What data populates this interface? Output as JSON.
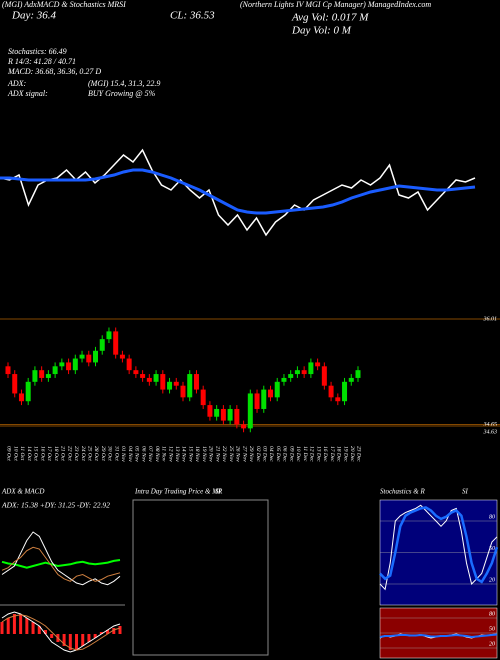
{
  "header": {
    "left_top": "(MGI) AdxMACD & Stochastics MRSI",
    "day": "Day: 36.4",
    "cl": "CL: 36.53",
    "title": "(Northern Lights IV MGI Cp Manager) ManagedIndex.com",
    "avg_vol": "Avg Vol: 0.017 M",
    "day_vol": "Day Vol: 0  M",
    "stoch": "Stochastics: 66.49",
    "r": "R 14/3: 41.28 / 40.71",
    "macd": "MACD: 36.68, 36.36, 0.27 D",
    "adx": "ADX:",
    "adx_vals": "(MGI) 15.4, 31.3, 22.9",
    "adx_signal": "ADX  signal:",
    "adx_buy": "BUY Growing @ 5%"
  },
  "chart_data": [
    {
      "type": "line",
      "categories": [
        null,
        null,
        null,
        null,
        null,
        null,
        null,
        null,
        null,
        null,
        null,
        null,
        null,
        null,
        null,
        null,
        null,
        null,
        null,
        null,
        null,
        null,
        null,
        null,
        null,
        null,
        null,
        null,
        null,
        null,
        null,
        null,
        null,
        null,
        null,
        null,
        null,
        null,
        null,
        null,
        null,
        null,
        null,
        null,
        null,
        null,
        null,
        null,
        null,
        null,
        null
      ],
      "ylim": [
        0,
        100
      ],
      "series": [
        {
          "color": "#ffffff",
          "width": 1.5,
          "values": [
            62,
            60,
            65,
            35,
            55,
            60,
            62,
            70,
            60,
            68,
            57,
            65,
            75,
            85,
            78,
            90,
            70,
            55,
            50,
            60,
            50,
            42,
            50,
            25,
            15,
            25,
            10,
            22,
            5,
            18,
            25,
            35,
            30,
            40,
            45,
            50,
            55,
            52,
            60,
            55,
            62,
            75,
            45,
            42,
            48,
            30,
            40,
            50,
            60,
            58,
            62
          ]
        },
        {
          "color": "#1a5cff",
          "width": 3,
          "values": [
            62,
            62,
            61,
            60,
            60,
            60,
            60,
            60,
            60,
            60,
            61,
            63,
            65,
            68,
            70,
            70,
            68,
            65,
            62,
            58,
            54,
            50,
            45,
            40,
            35,
            30,
            28,
            27,
            27,
            28,
            29,
            30,
            31,
            32,
            33,
            35,
            38,
            42,
            45,
            48,
            50,
            52,
            54,
            53,
            52,
            51,
            50,
            50,
            51,
            52,
            53
          ]
        }
      ]
    },
    {
      "type": "candlestick",
      "up_color": "#00e000",
      "down_color": "#ff0000",
      "level_color": "#b06000",
      "ylim": [
        34.45,
        36.1
      ],
      "yticks": [
        {
          "value": 36.01,
          "label": "36.01"
        },
        {
          "value": 34.65,
          "label": "34.65"
        },
        {
          "value": 34.63,
          "label": "34.63"
        }
      ],
      "categories": [
        "09 Oct",
        "10 Oct",
        "11 Oct",
        "14 Oct",
        "15 Oct",
        "16 Oct",
        "17 Oct",
        "18 Oct",
        "21 Oct",
        "22 Oct",
        "23 Oct",
        "24 Oct",
        "25 Oct",
        "28 Oct",
        "29 Oct",
        "30 Oct",
        "31 Oct",
        "01 Nov",
        "04 Nov",
        "05 Nov",
        "06 Nov",
        "07 Nov",
        "08 Nov",
        "11 Nov",
        "12 Nov",
        "13 Nov",
        "14 Nov",
        "15 Nov",
        "18 Nov",
        "19 Nov",
        "20 Nov",
        "21 Nov",
        "22 Nov",
        "25 Nov",
        "26 Nov",
        "27 Nov",
        "29 Nov",
        "02 Dec",
        "03 Dec",
        "04 Dec",
        "05 Dec",
        "06 Dec",
        "09 Dec",
        "10 Dec",
        "11 Dec",
        "12 Dec",
        "13 Dec",
        "16 Dec",
        "17 Dec",
        "18 Dec",
        "19 Dec",
        "20 Dec",
        "23 Dec"
      ],
      "open": [
        35.4,
        35.3,
        35.05,
        34.95,
        35.2,
        35.35,
        35.25,
        35.3,
        35.4,
        35.45,
        35.35,
        35.5,
        35.55,
        35.45,
        35.6,
        35.75,
        35.85,
        35.55,
        35.5,
        35.35,
        35.3,
        35.25,
        35.2,
        35.3,
        35.1,
        35.2,
        35.15,
        35.0,
        35.3,
        35.1,
        34.9,
        34.75,
        34.85,
        34.7,
        34.85,
        34.65,
        34.6,
        35.05,
        34.85,
        35.1,
        35.0,
        35.2,
        35.25,
        35.3,
        35.35,
        35.3,
        35.45,
        35.4,
        35.15,
        35.0,
        34.95,
        35.2,
        35.25
      ],
      "high": [
        35.45,
        35.35,
        35.1,
        35.25,
        35.4,
        35.4,
        35.35,
        35.45,
        35.5,
        35.5,
        35.55,
        35.6,
        35.6,
        35.65,
        35.8,
        35.9,
        35.9,
        35.6,
        35.55,
        35.4,
        35.35,
        35.3,
        35.35,
        35.35,
        35.25,
        35.25,
        35.2,
        35.35,
        35.35,
        35.15,
        34.95,
        34.9,
        34.9,
        34.9,
        34.9,
        34.7,
        35.1,
        35.1,
        35.15,
        35.15,
        35.25,
        35.3,
        35.35,
        35.4,
        35.4,
        35.5,
        35.5,
        35.45,
        35.2,
        35.05,
        35.25,
        35.3,
        35.4
      ],
      "low": [
        35.25,
        35.0,
        34.9,
        34.9,
        35.15,
        35.2,
        35.2,
        35.25,
        35.35,
        35.3,
        35.3,
        35.45,
        35.4,
        35.4,
        35.55,
        35.7,
        35.5,
        35.45,
        35.3,
        35.25,
        35.2,
        35.15,
        35.15,
        35.05,
        35.05,
        35.1,
        34.95,
        34.95,
        35.05,
        34.85,
        34.7,
        34.7,
        34.65,
        34.65,
        34.6,
        34.55,
        34.55,
        34.8,
        34.8,
        34.95,
        34.95,
        35.15,
        35.2,
        35.25,
        35.25,
        35.25,
        35.35,
        35.1,
        34.95,
        34.9,
        34.9,
        35.15,
        35.2
      ],
      "close": [
        35.3,
        35.05,
        34.95,
        35.2,
        35.35,
        35.25,
        35.3,
        35.4,
        35.45,
        35.35,
        35.5,
        35.55,
        35.45,
        35.6,
        35.75,
        35.85,
        35.55,
        35.5,
        35.35,
        35.3,
        35.25,
        35.2,
        35.3,
        35.1,
        35.2,
        35.15,
        35.0,
        35.3,
        35.1,
        34.9,
        34.75,
        34.85,
        34.7,
        34.85,
        34.65,
        34.6,
        35.05,
        34.85,
        35.1,
        35.0,
        35.2,
        35.25,
        35.3,
        35.35,
        35.3,
        35.45,
        35.4,
        35.15,
        35.0,
        34.95,
        35.2,
        35.25,
        35.35
      ]
    },
    {
      "type": "line",
      "title": "ADX  & MACD",
      "subtitle": "ADX: 15.38  +DY: 31.25  -DY: 22.92",
      "ylim": [
        0,
        100
      ],
      "series": [
        {
          "color": "#00ff00",
          "width": 2,
          "values": [
            45,
            43,
            42,
            40,
            38,
            40,
            42,
            44,
            42,
            40,
            41,
            42,
            44,
            45,
            43,
            42,
            43,
            44,
            46,
            47
          ]
        },
        {
          "color": "#ffffff",
          "width": 1,
          "values": [
            30,
            35,
            40,
            55,
            70,
            80,
            75,
            60,
            45,
            35,
            30,
            25,
            20,
            18,
            22,
            25,
            20,
            18,
            22,
            28
          ]
        },
        {
          "color": "#d08040",
          "width": 1,
          "values": [
            35,
            38,
            45,
            50,
            58,
            62,
            60,
            50,
            40,
            30,
            25,
            22,
            28,
            30,
            26,
            22,
            24,
            28,
            30,
            32
          ]
        }
      ]
    },
    {
      "type": "bar",
      "ylim": [
        -6,
        6
      ],
      "color": "#ff2020",
      "values": [
        3,
        4,
        5,
        5,
        4,
        3,
        2,
        1,
        -1,
        -2,
        -3,
        -4,
        -4,
        -3,
        -2,
        -1,
        0.5,
        1,
        1.5,
        2
      ],
      "series": [
        {
          "color": "#ffffff",
          "width": 1,
          "values": [
            4,
            5,
            5.5,
            5,
            4,
            3,
            2,
            0,
            -2,
            -3,
            -4,
            -4.5,
            -4,
            -3,
            -2,
            -1,
            0,
            1,
            2,
            2.5
          ]
        },
        {
          "color": "#d08040",
          "width": 1,
          "values": [
            3,
            4,
            4.5,
            4.8,
            4.5,
            3.8,
            3,
            2,
            0.5,
            -1,
            -2.5,
            -3.5,
            -4,
            -3.8,
            -3,
            -2,
            -1,
            0,
            1,
            1.5
          ]
        }
      ]
    },
    {
      "type": "panel",
      "title": "Intra  Day Trading Price  & MR",
      "title2": "SI"
    },
    {
      "type": "line",
      "title": "Stochastics & R",
      "title2": "SI",
      "background": "#00007a",
      "ylim": [
        0,
        100
      ],
      "yticks": [
        80,
        50,
        20
      ],
      "series": [
        {
          "color": "#ffffff",
          "width": 1,
          "values": [
            20,
            15,
            40,
            80,
            85,
            88,
            90,
            92,
            95,
            90,
            85,
            80,
            75,
            80,
            90,
            92,
            70,
            40,
            20,
            25,
            30,
            45,
            60,
            65
          ]
        },
        {
          "color": "#1a6cff",
          "width": 2.5,
          "values": [
            30,
            25,
            28,
            50,
            75,
            85,
            88,
            90,
            92,
            93,
            90,
            85,
            82,
            84,
            88,
            90,
            85,
            65,
            40,
            25,
            22,
            30,
            40,
            55
          ]
        }
      ]
    },
    {
      "type": "line",
      "background": "#8b0000",
      "ylim": [
        0,
        100
      ],
      "yticks": [
        80,
        50,
        20
      ],
      "series": [
        {
          "color": "#ffffff",
          "width": 1,
          "values": [
            40,
            45,
            42,
            44,
            48,
            46,
            44,
            45,
            47,
            43,
            40,
            42,
            45,
            44,
            46,
            48,
            45,
            42,
            40,
            43,
            46,
            45,
            47,
            48
          ]
        },
        {
          "color": "#1a6cff",
          "width": 2,
          "values": [
            42,
            44,
            44,
            45,
            46,
            46,
            45,
            45,
            46,
            45,
            43,
            43,
            44,
            44,
            45,
            46,
            45,
            44,
            42,
            43,
            44,
            45,
            46,
            47
          ]
        }
      ]
    }
  ]
}
